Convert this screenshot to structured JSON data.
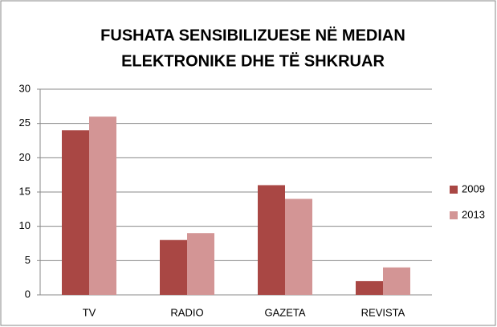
{
  "chart_data": {
    "type": "bar",
    "title": [
      "FUSHATA SENSIBILIZUESE NË MEDIAN",
      "ELEKTRONIKE DHE TË SHKRUAR"
    ],
    "categories": [
      "TV",
      "RADIO",
      "GAZETA",
      "REVISTA"
    ],
    "series": [
      {
        "name": "2009",
        "color": "#a94744",
        "values": [
          24,
          8,
          16,
          2
        ]
      },
      {
        "name": "2013",
        "color": "#d39595",
        "values": [
          26,
          9,
          14,
          4
        ]
      }
    ],
    "ylim": [
      0,
      30
    ],
    "yticks": [
      0,
      5,
      10,
      15,
      20,
      25,
      30
    ],
    "grid": true,
    "legend": "right"
  }
}
